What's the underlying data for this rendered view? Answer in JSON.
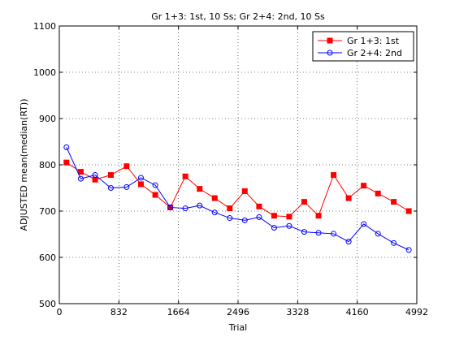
{
  "chart_data": {
    "type": "line",
    "title": "Gr 1+3: 1st, 10 Ss; Gr 2+4: 2nd, 10 Ss",
    "xlabel": "Trial",
    "ylabel": "ADJUSTED mean(median(RT))",
    "xlim": [
      0,
      4992
    ],
    "ylim": [
      500,
      1100
    ],
    "xticks": [
      0,
      832,
      1664,
      2496,
      3328,
      4160,
      4992
    ],
    "yticks": [
      500,
      600,
      700,
      800,
      900,
      1000,
      1100
    ],
    "grid": true,
    "legend_position": "top-right",
    "x": [
      100,
      300,
      500,
      720,
      940,
      1140,
      1340,
      1550,
      1760,
      1960,
      2170,
      2380,
      2590,
      2790,
      3000,
      3210,
      3420,
      3620,
      3830,
      4040,
      4250,
      4450,
      4670,
      4880
    ],
    "series": [
      {
        "name": "Gr 1+3: 1st",
        "color": "#ff0000",
        "marker": "square",
        "values": [
          805,
          785,
          768,
          778,
          797,
          758,
          735,
          708,
          775,
          748,
          728,
          706,
          743,
          710,
          690,
          688,
          720,
          690,
          778,
          728,
          755,
          738,
          720,
          700
        ]
      },
      {
        "name": "Gr 2+4: 2nd",
        "color": "#0000ff",
        "marker": "circle",
        "values": [
          838,
          770,
          778,
          750,
          752,
          772,
          756,
          708,
          706,
          712,
          697,
          685,
          680,
          687,
          664,
          668,
          655,
          653,
          651,
          634,
          672,
          651,
          631,
          616
        ]
      }
    ]
  }
}
